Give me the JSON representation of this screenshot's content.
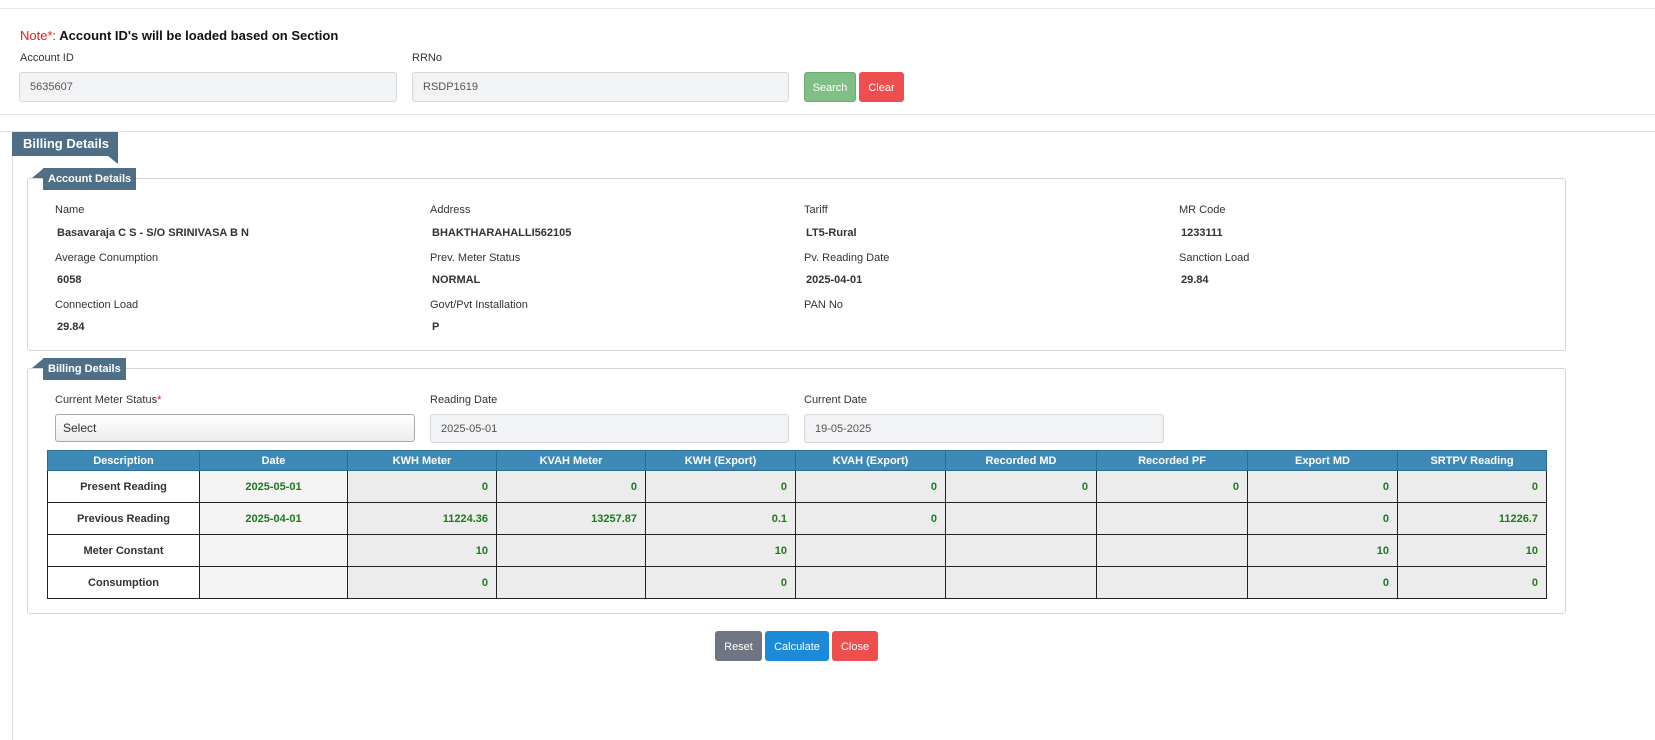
{
  "note": {
    "prefix": "Note*:",
    "text": "Account ID's will be loaded based on Section"
  },
  "search": {
    "account_id_label": "Account ID",
    "account_id_value": "5635607",
    "rrno_label": "RRNo",
    "rrno_value": "RSDP1619",
    "search_label": "Search",
    "clear_label": "Clear"
  },
  "billing_tab": "Billing Details",
  "account_details": {
    "title": "Account Details",
    "fields": [
      {
        "label": "Name",
        "value": "Basavaraja C S - S/O SRINIVASA B N"
      },
      {
        "label": "Address",
        "value": "BHAKTHARAHALLI562105"
      },
      {
        "label": "Tariff",
        "value": "LT5-Rural"
      },
      {
        "label": "MR Code",
        "value": "1233111"
      },
      {
        "label": "Average Conumption",
        "value": "6058"
      },
      {
        "label": "Prev. Meter Status",
        "value": "NORMAL"
      },
      {
        "label": "Pv. Reading Date",
        "value": "2025-04-01"
      },
      {
        "label": "Sanction Load",
        "value": "29.84"
      },
      {
        "label": "Connection Load",
        "value": "29.84"
      },
      {
        "label": "Govt/Pvt Installation",
        "value": "P"
      },
      {
        "label": "PAN No",
        "value": ""
      }
    ]
  },
  "billing_details": {
    "title": "Billing Details",
    "meter_status_label": "Current Meter Status",
    "meter_status_required": "*",
    "meter_status_value": "Select",
    "reading_date_label": "Reading Date",
    "reading_date_value": "2025-05-01",
    "current_date_label": "Current Date",
    "current_date_value": "19-05-2025",
    "columns": [
      "Description",
      "Date",
      "KWH Meter",
      "KVAH Meter",
      "KWH (Export)",
      "KVAH (Export)",
      "Recorded MD",
      "Recorded PF",
      "Export MD",
      "SRTPV Reading"
    ],
    "rows": [
      [
        "Present Reading",
        "2025-05-01",
        "0",
        "0",
        "0",
        "0",
        "0",
        "0",
        "0",
        "0"
      ],
      [
        "Previous Reading",
        "2025-04-01",
        "11224.36",
        "13257.87",
        "0.1",
        "0",
        "",
        "",
        "0",
        "11226.7"
      ],
      [
        "Meter Constant",
        "",
        "10",
        "",
        "10",
        "",
        "",
        "",
        "10",
        "10"
      ],
      [
        "Consumption",
        "",
        "0",
        "",
        "0",
        "",
        "",
        "",
        "0",
        "0"
      ]
    ]
  },
  "actions": {
    "reset_label": "Reset",
    "calculate_label": "Calculate",
    "close_label": "Close"
  }
}
